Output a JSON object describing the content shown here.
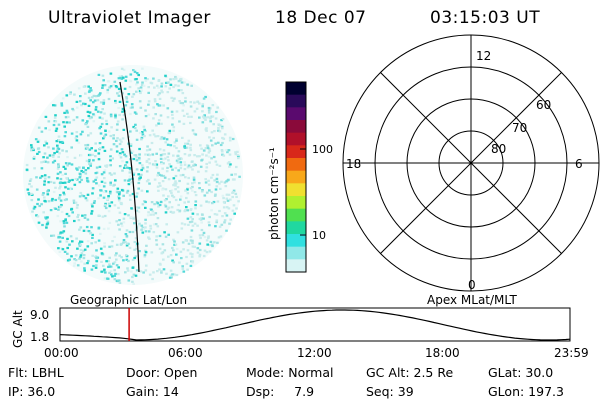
{
  "header": {
    "title": "Ultraviolet Imager",
    "date": "18 Dec 07",
    "time": "03:15:03 UT"
  },
  "colorbar": {
    "unit_label": "photon cm⁻²s⁻¹",
    "ticks": [
      "100",
      "10"
    ],
    "colors": [
      "#000030",
      "#2a0a5a",
      "#5a0a6e",
      "#8a0a3a",
      "#b0102a",
      "#d8281a",
      "#f06a10",
      "#f8a81a",
      "#f0e030",
      "#b0f030",
      "#50e050",
      "#20d8a0",
      "#30e0e0",
      "#90e8e8",
      "#d8f4f4"
    ]
  },
  "polar_grid": {
    "latitude_labels": [
      "60",
      "70",
      "80"
    ],
    "mlt_labels": {
      "top": "12",
      "left": "18",
      "right": "6",
      "bottom": "0"
    }
  },
  "plot_labels": {
    "left": "Geographic Lat/Lon",
    "right": "Apex MLat/MLT"
  },
  "timeline": {
    "axis_label": "GC Alt",
    "y_ticks": [
      "9.0",
      "1.8"
    ],
    "x_ticks": [
      "00:00",
      "06:00",
      "12:00",
      "18:00",
      "23:59"
    ],
    "marker_time_hours": 3.25,
    "marker_color": "#cc0000"
  },
  "info": {
    "flt": "Flt: LBHL",
    "ip": "IP: 36.0",
    "door": "Door: Open",
    "gain": "Gain: 14",
    "mode": "Mode: Normal",
    "dsp": "Dsp:     7.9",
    "gc_alt": "GC Alt: 2.5 Re",
    "seq": "Seq: 39",
    "glat": "GLat: 30.0",
    "glon": "GLon: 197.3"
  }
}
